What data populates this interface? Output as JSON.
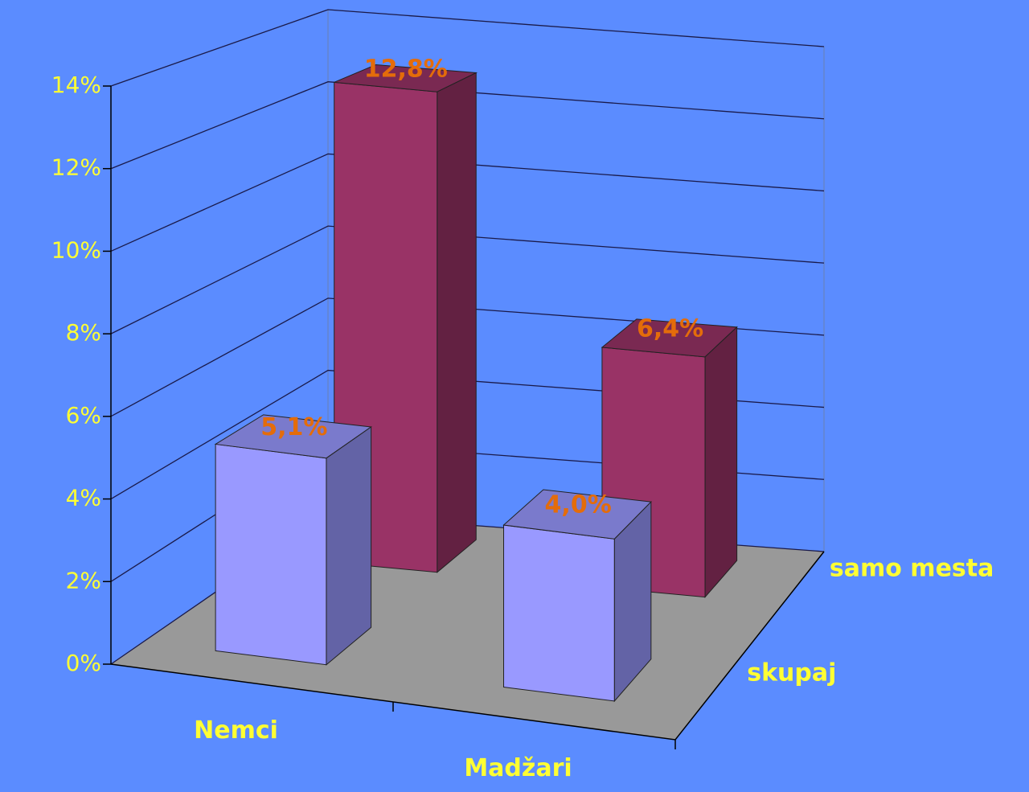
{
  "chart_data": {
    "type": "bar3d",
    "categories": [
      "Nemci",
      "Madžari"
    ],
    "series": [
      {
        "name": "skupaj",
        "color": "#9999ff",
        "values": [
          5.1,
          4.0
        ],
        "value_labels": [
          "5,1%",
          "4,0%"
        ]
      },
      {
        "name": "samo mesta",
        "color": "#993366",
        "values": [
          12.8,
          6.4
        ],
        "value_labels": [
          "12,8%",
          "6,4%"
        ]
      }
    ],
    "ylim": [
      0,
      14
    ],
    "yticks": [
      {
        "value": 0,
        "label": "0%"
      },
      {
        "value": 2,
        "label": "2%"
      },
      {
        "value": 4,
        "label": "4%"
      },
      {
        "value": 6,
        "label": "6%"
      },
      {
        "value": 8,
        "label": "8%"
      },
      {
        "value": 10,
        "label": "10%"
      },
      {
        "value": 12,
        "label": "12%"
      },
      {
        "value": 14,
        "label": "14%"
      }
    ],
    "grid": true
  }
}
